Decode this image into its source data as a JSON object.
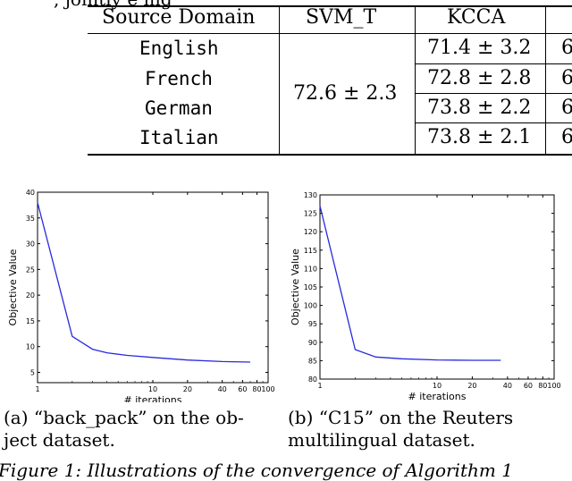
{
  "top_text": "... , jointly ... e ... Figure ... ing ...",
  "table": {
    "headers": [
      "Source Domain",
      "SVM_T",
      "KCCA",
      "6"
    ],
    "rows": [
      {
        "domain": "English",
        "kcca": "71.4 ± 3.2",
        "last": "6"
      },
      {
        "domain": "French",
        "kcca": "72.8 ± 2.8",
        "last": "6"
      },
      {
        "domain": "German",
        "kcca": "73.8 ± 2.2",
        "last": "6"
      },
      {
        "domain": "Italian",
        "kcca": "73.8 ± 2.1",
        "last": "6"
      }
    ],
    "svm_t_merged": "72.6 ± 2.3"
  },
  "chart_data": [
    {
      "type": "line",
      "title": "",
      "xlabel": "# iterations",
      "ylabel": "Objective Value",
      "xscale": "log",
      "xlim": [
        1,
        100
      ],
      "ylim": [
        3,
        40
      ],
      "xticks": [
        1,
        10,
        20,
        40,
        60,
        80,
        100
      ],
      "yticks": [
        5,
        10,
        15,
        20,
        25,
        30,
        35,
        40
      ],
      "color": "#2a2ae0",
      "x": [
        1,
        2,
        3,
        4,
        6,
        10,
        20,
        40,
        70
      ],
      "y": [
        38,
        12,
        9.5,
        8.8,
        8.3,
        7.9,
        7.4,
        7.1,
        7.0
      ]
    },
    {
      "type": "line",
      "title": "",
      "xlabel": "# iterations",
      "ylabel": "Objective Value",
      "xscale": "log",
      "xlim": [
        1,
        100
      ],
      "ylim": [
        80,
        130
      ],
      "xticks": [
        1,
        10,
        20,
        40,
        60,
        80,
        100
      ],
      "yticks": [
        80,
        85,
        90,
        95,
        100,
        105,
        110,
        115,
        120,
        125,
        130
      ],
      "color": "#2a2ae0",
      "x": [
        1,
        2,
        3,
        5,
        10,
        20,
        35
      ],
      "y": [
        127,
        88,
        86,
        85.5,
        85.2,
        85.1,
        85.1
      ]
    }
  ],
  "captions": [
    [
      "(a) “back_pack” on the ob-",
      "ject dataset."
    ],
    [
      "(b) “C15” on the Reuters",
      "multilingual dataset."
    ]
  ],
  "figure_caption_line": "Figure 1: Illustrations of the convergence of Algorithm 1"
}
